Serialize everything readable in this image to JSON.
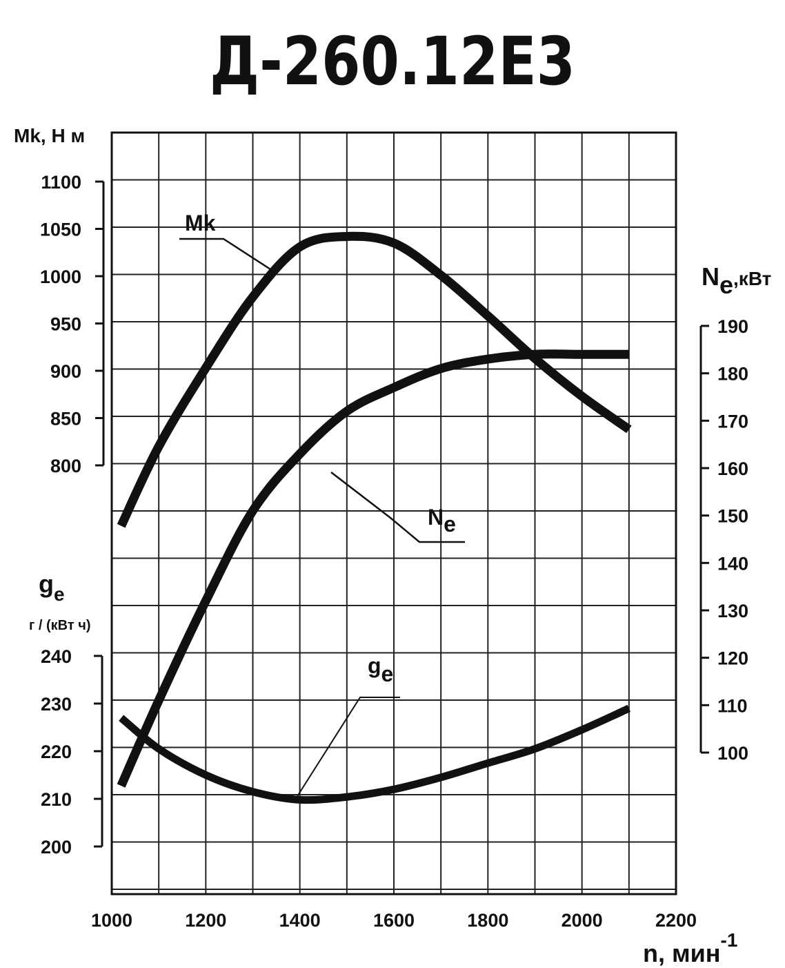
{
  "chart_data": {
    "type": "line",
    "title": "Д-260.12Е3",
    "x_axis": {
      "label": "n, мин",
      "label_sup": "-1",
      "range": [
        1000,
        2200
      ],
      "ticks": [
        "1000",
        "1200",
        "1400",
        "1600",
        "1800",
        "2000",
        "2200"
      ]
    },
    "y_axes": {
      "torque": {
        "label": "Mk, Н м",
        "range": [
          800,
          1100
        ],
        "ticks": [
          "800",
          "850",
          "900",
          "950",
          "1000",
          "1050",
          "1100"
        ]
      },
      "power": {
        "label_main": "N",
        "label_sub": "e",
        "label_unit": ",кВт",
        "range": [
          100,
          190
        ],
        "ticks": [
          "100",
          "110",
          "120",
          "130",
          "140",
          "150",
          "160",
          "170",
          "180",
          "190"
        ]
      },
      "consumption": {
        "label_main": "g",
        "label_sub": "e",
        "label_unit": "г / (кВт ч)",
        "range": [
          200,
          240
        ],
        "ticks": [
          "200",
          "210",
          "220",
          "230",
          "240"
        ]
      }
    },
    "grid": true,
    "series": [
      {
        "name": "Mk",
        "axis": "torque",
        "x": [
          1020,
          1100,
          1200,
          1300,
          1400,
          1500,
          1600,
          1700,
          1800,
          1900,
          2000,
          2100
        ],
        "y": [
          736,
          820,
          903,
          978,
          1031,
          1042,
          1035,
          1001,
          958,
          913,
          873,
          838
        ]
      },
      {
        "name_main": "N",
        "name_sub": "e",
        "axis": "power",
        "x": [
          1020,
          1100,
          1200,
          1300,
          1400,
          1500,
          1600,
          1700,
          1800,
          1900,
          2000,
          2100
        ],
        "y": [
          93,
          111,
          132,
          151,
          163,
          172,
          177,
          181,
          183,
          184,
          184,
          184
        ]
      },
      {
        "name_main": "g",
        "name_sub": "e",
        "axis": "consumption",
        "x": [
          1020,
          1100,
          1200,
          1300,
          1400,
          1500,
          1600,
          1700,
          1800,
          1900,
          2000,
          2100
        ],
        "y": [
          227,
          220.5,
          215,
          211.5,
          209.8,
          210.4,
          212,
          214.5,
          217.5,
          220.5,
          224.5,
          229
        ]
      }
    ]
  }
}
